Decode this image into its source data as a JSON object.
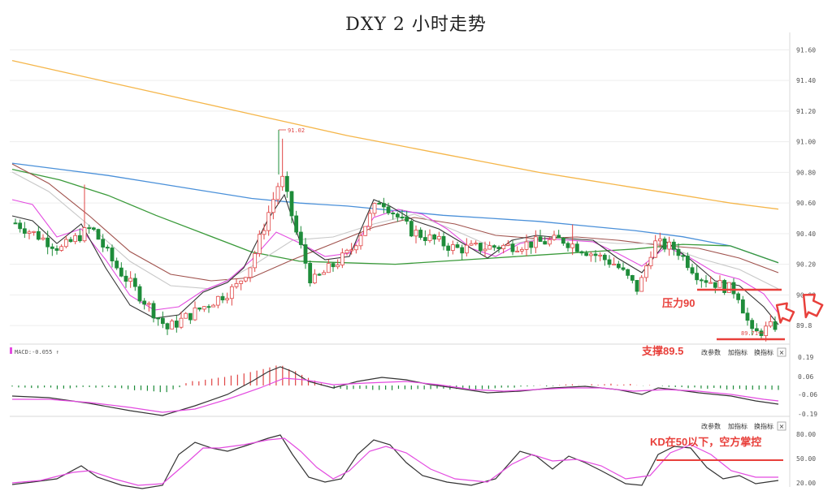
{
  "title": "DXY 2 小时走势",
  "price_axis": [
    "91.60",
    "91.40",
    "91.20",
    "91.00",
    "90.80",
    "90.60",
    "90.40",
    "90.20",
    "90.00",
    "89.8"
  ],
  "macd_axis": [
    "0.19",
    "0.06",
    "-0.06",
    "-0.19"
  ],
  "kd_axis": [
    "80.00",
    "50.00",
    "20.00"
  ],
  "labels": {
    "high": "91.02",
    "low": "89.71",
    "macd": "MACD:-0.055 ↑",
    "pressure": "压力90",
    "support": "支撑89.5",
    "kd_note": "KD在50以下，空方掌控"
  },
  "buttons": [
    "改参数",
    "加指标",
    "换指标"
  ],
  "close_glyph": "×",
  "colors": {
    "up": "#e04545",
    "down": "#1e8c3a",
    "annotation": "#e8403b",
    "ma_orange": "#f5b64a",
    "ma_blue": "#4a90d9",
    "ma_green": "#3a9a3a",
    "ma_brown": "#a0524d",
    "ma_pink": "#e34be0",
    "ma_gray": "#c8c8c8",
    "ma_dark": "#333333"
  },
  "chart_data": [
    {
      "type": "candlestick",
      "title": "DXY 2 小时走势",
      "ylim": [
        89.7,
        91.65
      ],
      "annotations": [
        "91.02",
        "89.71",
        "压力90",
        "支撑89.5"
      ],
      "series": [
        {
          "name": "MA orange",
          "values": [
            91.53,
            91.46,
            91.39,
            91.32,
            91.25,
            91.18,
            91.11,
            91.04,
            90.98,
            90.92,
            90.86,
            90.8,
            90.75,
            90.7,
            90.65,
            90.6,
            90.56
          ]
        },
        {
          "name": "MA blue",
          "values": [
            90.86,
            90.82,
            90.78,
            90.73,
            90.68,
            90.63,
            90.6,
            90.58,
            90.55,
            90.52,
            90.5,
            90.48,
            90.45,
            90.42,
            90.38,
            90.32,
            90.21
          ]
        },
        {
          "name": "MA green",
          "values": [
            90.82,
            90.75,
            90.65,
            90.52,
            90.4,
            90.28,
            90.22,
            90.21,
            90.2,
            90.22,
            90.24,
            90.26,
            90.28,
            90.3,
            90.33,
            90.32,
            90.21
          ]
        }
      ]
    },
    {
      "type": "bar",
      "title": "MACD",
      "ylim": [
        -0.19,
        0.19
      ],
      "annotations": [
        "MACD:-0.055 ↑"
      ]
    },
    {
      "type": "line",
      "title": "KD",
      "ylim": [
        20,
        80
      ],
      "annotations": [
        "KD在50以下，空方掌控"
      ]
    }
  ]
}
